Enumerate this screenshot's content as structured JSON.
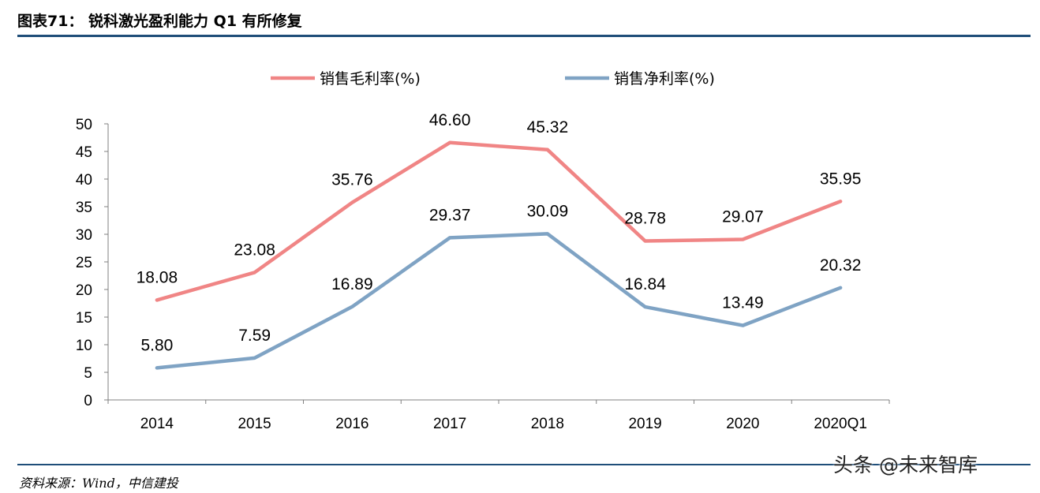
{
  "header": {
    "title": "图表71：  锐科激光盈利能力 Q1 有所修复"
  },
  "footer": {
    "source": "资料来源：Wind，中信建投",
    "watermark": "头条 @未来智库"
  },
  "colors": {
    "gross_margin_line": "#f08585",
    "net_margin_line": "#7fa3c4",
    "rule": "#1f4e79",
    "axis": "#808080"
  },
  "chart_data": {
    "type": "line",
    "categories": [
      "2014",
      "2015",
      "2016",
      "2017",
      "2018",
      "2019",
      "2020",
      "2020Q1"
    ],
    "ylim": [
      0,
      50
    ],
    "yticks": [
      0,
      5,
      10,
      15,
      20,
      25,
      30,
      35,
      40,
      45,
      50
    ],
    "grid": false,
    "legend_position": "top-center",
    "series": [
      {
        "name": "销售毛利率(%)",
        "values": [
          18.08,
          23.08,
          35.76,
          46.6,
          45.32,
          28.78,
          29.07,
          35.95
        ],
        "labels": [
          "18.08",
          "23.08",
          "35.76",
          "46.60",
          "45.32",
          "28.78",
          "29.07",
          "35.95"
        ],
        "color": "#f08585"
      },
      {
        "name": "销售净利率(%)",
        "values": [
          5.8,
          7.59,
          16.89,
          29.37,
          30.09,
          16.84,
          13.49,
          20.32
        ],
        "labels": [
          "5.80",
          "7.59",
          "16.89",
          "29.37",
          "30.09",
          "16.84",
          "13.49",
          "20.32"
        ],
        "color": "#7fa3c4"
      }
    ]
  }
}
